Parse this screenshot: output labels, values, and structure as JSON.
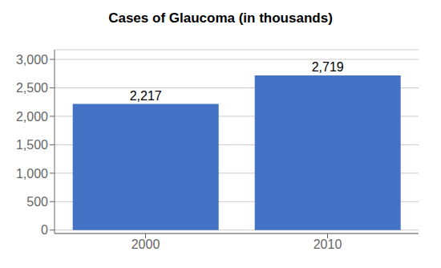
{
  "chart_data": {
    "type": "bar",
    "title": "Cases of Glaucoma (in thousands)",
    "categories": [
      "2000",
      "2010"
    ],
    "values": [
      2217,
      2719
    ],
    "value_labels": [
      "2,217",
      "2,719"
    ],
    "data_labels": true,
    "color": "#4472C4",
    "ylim": [
      -60,
      3170
    ],
    "yticks": [
      0,
      500,
      {
        "value": 1000,
        "label": "1,000"
      },
      {
        "value": 1500,
        "label": "1,500"
      },
      {
        "value": 2000,
        "label": "2,000"
      },
      {
        "value": 2500,
        "label": "2,500"
      },
      {
        "value": 3000,
        "label": "3,000"
      }
    ],
    "grid": true
  }
}
